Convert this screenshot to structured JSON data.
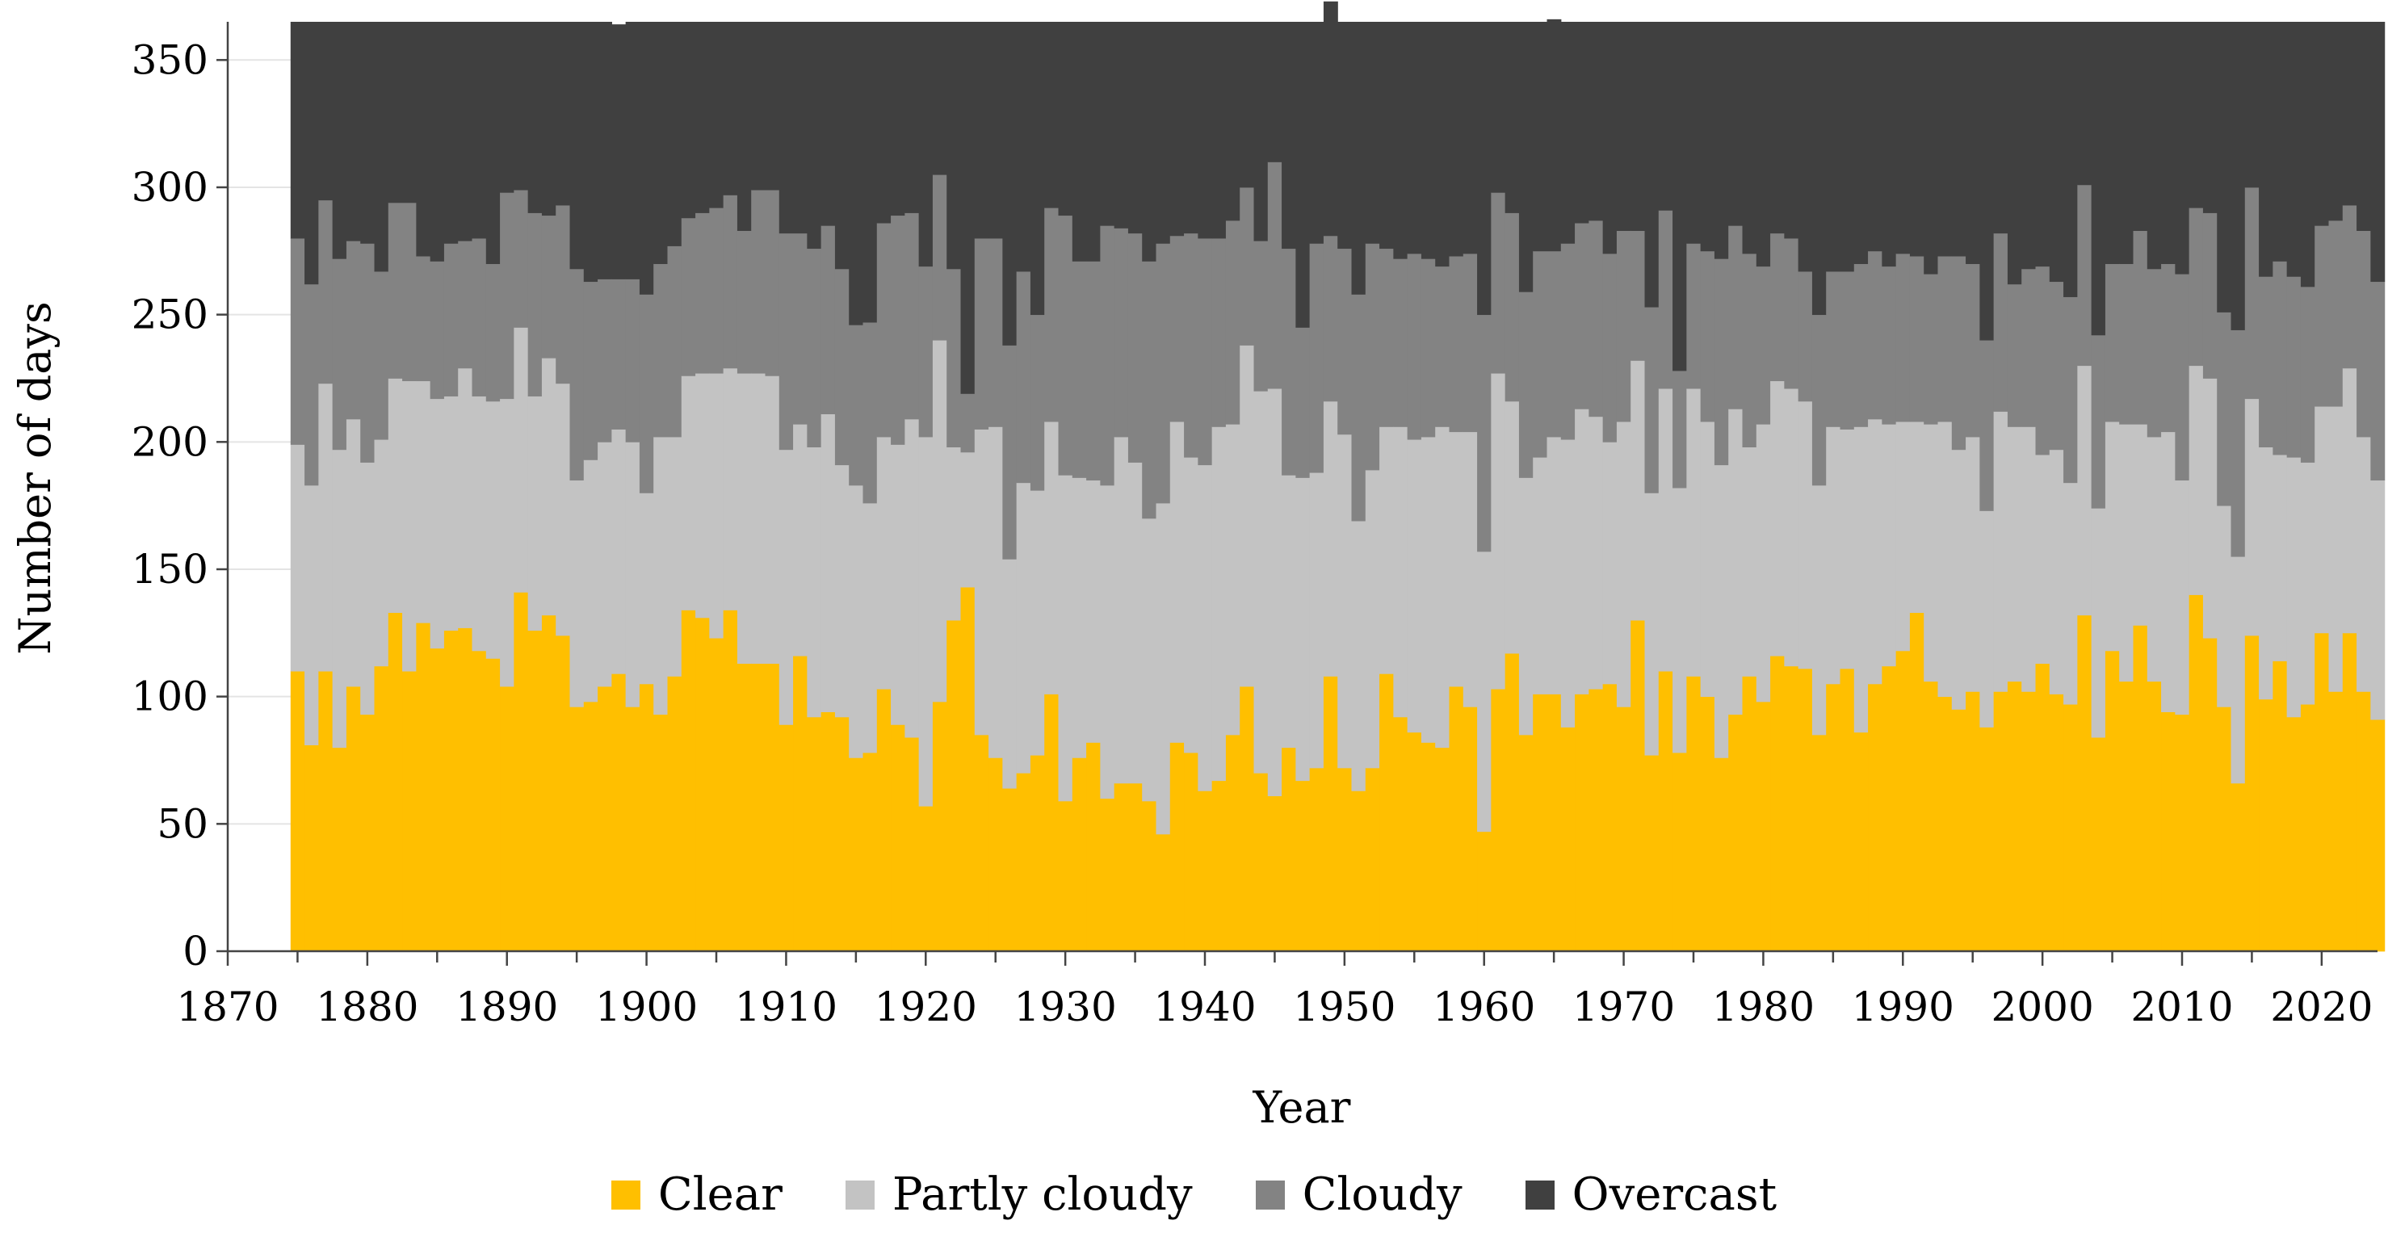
{
  "chart_data": {
    "type": "bar",
    "stacked": true,
    "title": "",
    "xlabel": "Year",
    "ylabel": "Number of days",
    "xlim": [
      1870,
      2024
    ],
    "ylim": [
      0,
      365
    ],
    "x_ticks": [
      1870,
      1880,
      1890,
      1900,
      1910,
      1920,
      1930,
      1940,
      1950,
      1960,
      1970,
      1980,
      1990,
      2000,
      2010,
      2020
    ],
    "y_ticks": [
      0,
      50,
      100,
      150,
      200,
      250,
      300,
      350
    ],
    "grid": "horizontal",
    "legend_position": "bottom",
    "colors": {
      "Clear": "#ffbf00",
      "Partly cloudy": "#c3c3c3",
      "Cloudy": "#838383",
      "Overcast": "#404040"
    },
    "x": [
      1875,
      1876,
      1877,
      1878,
      1879,
      1880,
      1881,
      1882,
      1883,
      1884,
      1885,
      1886,
      1887,
      1888,
      1889,
      1890,
      1891,
      1892,
      1893,
      1894,
      1895,
      1896,
      1897,
      1898,
      1899,
      1900,
      1901,
      1902,
      1903,
      1904,
      1905,
      1906,
      1907,
      1908,
      1909,
      1910,
      1911,
      1912,
      1913,
      1914,
      1915,
      1916,
      1917,
      1918,
      1919,
      1920,
      1921,
      1922,
      1923,
      1924,
      1925,
      1926,
      1927,
      1928,
      1929,
      1930,
      1931,
      1932,
      1933,
      1934,
      1935,
      1936,
      1937,
      1938,
      1939,
      1940,
      1941,
      1942,
      1943,
      1944,
      1945,
      1946,
      1947,
      1948,
      1949,
      1950,
      1951,
      1952,
      1953,
      1954,
      1955,
      1956,
      1957,
      1958,
      1959,
      1960,
      1961,
      1962,
      1963,
      1964,
      1965,
      1966,
      1967,
      1968,
      1969,
      1970,
      1971,
      1972,
      1973,
      1974,
      1975,
      1976,
      1977,
      1978,
      1979,
      1980,
      1981,
      1982,
      1983,
      1984,
      1985,
      1986,
      1987,
      1988,
      1989,
      1990,
      1991,
      1992,
      1993,
      1994,
      1995,
      1996,
      1997,
      1998,
      1999,
      2000,
      2001,
      2002,
      2003,
      2004,
      2005,
      2006,
      2007,
      2008,
      2009,
      2010,
      2011,
      2012,
      2013,
      2014,
      2015,
      2016,
      2017,
      2018,
      2019,
      2020,
      2021,
      2022,
      2023,
      2024
    ],
    "series": [
      {
        "name": "Clear",
        "values": [
          110,
          81,
          110,
          80,
          104,
          93,
          112,
          133,
          110,
          129,
          119,
          126,
          127,
          118,
          115,
          104,
          141,
          126,
          132,
          124,
          96,
          98,
          104,
          109,
          96,
          105,
          93,
          108,
          134,
          131,
          123,
          134,
          113,
          113,
          113,
          89,
          116,
          92,
          94,
          92,
          76,
          78,
          103,
          89,
          84,
          57,
          98,
          130,
          143,
          85,
          76,
          64,
          70,
          77,
          101,
          59,
          76,
          82,
          60,
          66,
          66,
          59,
          46,
          82,
          78,
          63,
          67,
          85,
          104,
          70,
          61,
          80,
          67,
          72,
          108,
          72,
          63,
          72,
          109,
          92,
          86,
          82,
          80,
          104,
          96,
          47,
          103,
          117,
          85,
          101,
          101,
          88,
          101,
          103,
          105,
          96,
          130,
          77,
          110,
          78,
          108,
          100,
          76,
          93,
          108,
          98,
          116,
          112,
          111,
          85,
          105,
          111,
          86,
          105,
          112,
          118,
          133,
          106,
          100,
          95,
          102,
          88,
          102,
          106,
          102,
          113,
          101,
          97,
          132,
          84,
          118,
          106,
          128,
          106,
          94,
          93,
          140,
          123,
          96,
          66,
          124,
          99,
          114,
          92,
          97,
          125,
          102,
          125,
          102,
          91
        ]
      },
      {
        "name": "Partly cloudy",
        "values": [
          89,
          102,
          113,
          117,
          105,
          99,
          89,
          92,
          114,
          95,
          98,
          92,
          102,
          100,
          101,
          113,
          104,
          92,
          101,
          99,
          89,
          95,
          96,
          96,
          104,
          75,
          109,
          94,
          92,
          96,
          104,
          95,
          114,
          114,
          113,
          108,
          91,
          106,
          117,
          99,
          107,
          98,
          99,
          110,
          125,
          145,
          142,
          68,
          53,
          120,
          130,
          90,
          114,
          104,
          107,
          128,
          110,
          103,
          123,
          136,
          126,
          111,
          130,
          126,
          116,
          128,
          139,
          122,
          134,
          150,
          160,
          107,
          119,
          116,
          108,
          131,
          106,
          117,
          97,
          114,
          115,
          120,
          126,
          100,
          108,
          110,
          124,
          99,
          101,
          93,
          101,
          113,
          112,
          107,
          95,
          112,
          102,
          103,
          111,
          104,
          113,
          108,
          115,
          120,
          90,
          109,
          108,
          109,
          105,
          98,
          101,
          94,
          120,
          104,
          95,
          90,
          75,
          101,
          108,
          102,
          100,
          85,
          110,
          100,
          104,
          82,
          96,
          87,
          98,
          90,
          90,
          101,
          79,
          96,
          110,
          92,
          90,
          102,
          79,
          89,
          93,
          99,
          81,
          102,
          95,
          89,
          112,
          104,
          100,
          94
        ]
      },
      {
        "name": "Cloudy",
        "values": [
          81,
          79,
          72,
          75,
          70,
          86,
          66,
          69,
          70,
          49,
          54,
          60,
          50,
          62,
          54,
          81,
          54,
          72,
          56,
          70,
          83,
          70,
          64,
          59,
          64,
          78,
          68,
          75,
          62,
          63,
          65,
          68,
          56,
          72,
          73,
          85,
          75,
          78,
          74,
          77,
          63,
          71,
          84,
          90,
          81,
          67,
          65,
          70,
          23,
          75,
          74,
          84,
          83,
          69,
          84,
          102,
          85,
          86,
          102,
          82,
          90,
          101,
          102,
          73,
          88,
          89,
          74,
          80,
          62,
          59,
          89,
          89,
          59,
          90,
          65,
          73,
          89,
          89,
          70,
          66,
          73,
          70,
          63,
          69,
          70,
          93,
          71,
          74,
          73,
          81,
          73,
          77,
          73,
          77,
          74,
          75,
          51,
          73,
          70,
          46,
          57,
          67,
          81,
          72,
          76,
          62,
          58,
          59,
          51,
          67,
          61,
          62,
          64,
          66,
          62,
          66,
          65,
          59,
          65,
          76,
          68,
          67,
          70,
          56,
          62,
          74,
          66,
          73,
          71,
          68,
          62,
          63,
          76,
          66,
          66,
          81,
          62,
          65,
          76,
          89,
          83,
          67,
          76,
          71,
          69,
          71,
          73,
          64,
          81,
          78
        ]
      },
      {
        "name": "Overcast",
        "values": [
          85,
          103,
          70,
          93,
          86,
          87,
          98,
          71,
          71,
          92,
          94,
          87,
          86,
          85,
          95,
          67,
          66,
          75,
          76,
          72,
          97,
          102,
          101,
          100,
          101,
          107,
          95,
          88,
          77,
          75,
          73,
          68,
          82,
          66,
          66,
          83,
          83,
          89,
          80,
          97,
          119,
          118,
          79,
          76,
          75,
          96,
          60,
          97,
          146,
          85,
          85,
          127,
          98,
          115,
          73,
          76,
          94,
          94,
          80,
          81,
          83,
          94,
          87,
          84,
          83,
          85,
          85,
          78,
          65,
          86,
          55,
          89,
          120,
          87,
          92,
          89,
          107,
          87,
          89,
          93,
          91,
          93,
          96,
          92,
          91,
          115,
          67,
          75,
          106,
          90,
          91,
          87,
          79,
          78,
          91,
          82,
          82,
          112,
          74,
          137,
          87,
          90,
          93,
          80,
          91,
          96,
          83,
          85,
          98,
          115,
          98,
          98,
          95,
          90,
          96,
          91,
          92,
          99,
          92,
          92,
          95,
          125,
          83,
          103,
          97,
          96,
          102,
          108,
          64,
          123,
          95,
          95,
          82,
          97,
          95,
          99,
          73,
          75,
          114,
          121,
          65,
          100,
          94,
          100,
          104,
          80,
          78,
          72,
          82,
          102
        ]
      }
    ]
  }
}
